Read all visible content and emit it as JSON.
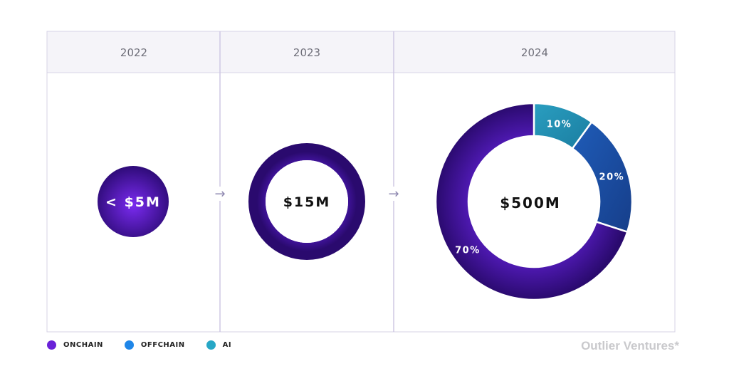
{
  "chart_data": {
    "type": "pie",
    "columns": [
      {
        "year": "2022",
        "total": "< $5M",
        "style": "filled"
      },
      {
        "year": "2023",
        "total": "$15M",
        "style": "ring"
      },
      {
        "year": "2024",
        "total": "$500M",
        "style": "donut"
      }
    ],
    "slices_2024": [
      {
        "name": "ONCHAIN",
        "value": 70,
        "label": "70%"
      },
      {
        "name": "AI",
        "value": 10,
        "label": "10%"
      },
      {
        "name": "OFFCHAIN",
        "value": 20,
        "label": "20%"
      }
    ],
    "legend": [
      {
        "name": "ONCHAIN",
        "color": "#6a22d8"
      },
      {
        "name": "OFFCHAIN",
        "color": "#1f86e8"
      },
      {
        "name": "AI",
        "color": "#27a7c6"
      }
    ],
    "colors": {
      "onchain_dark": "#2a0a6e",
      "onchain_light": "#6a22d8",
      "ai": "#1a8aa8",
      "offchain": "#1a4a9e"
    }
  },
  "arrow_glyph": "→",
  "brand": "Outlier Ventures*"
}
